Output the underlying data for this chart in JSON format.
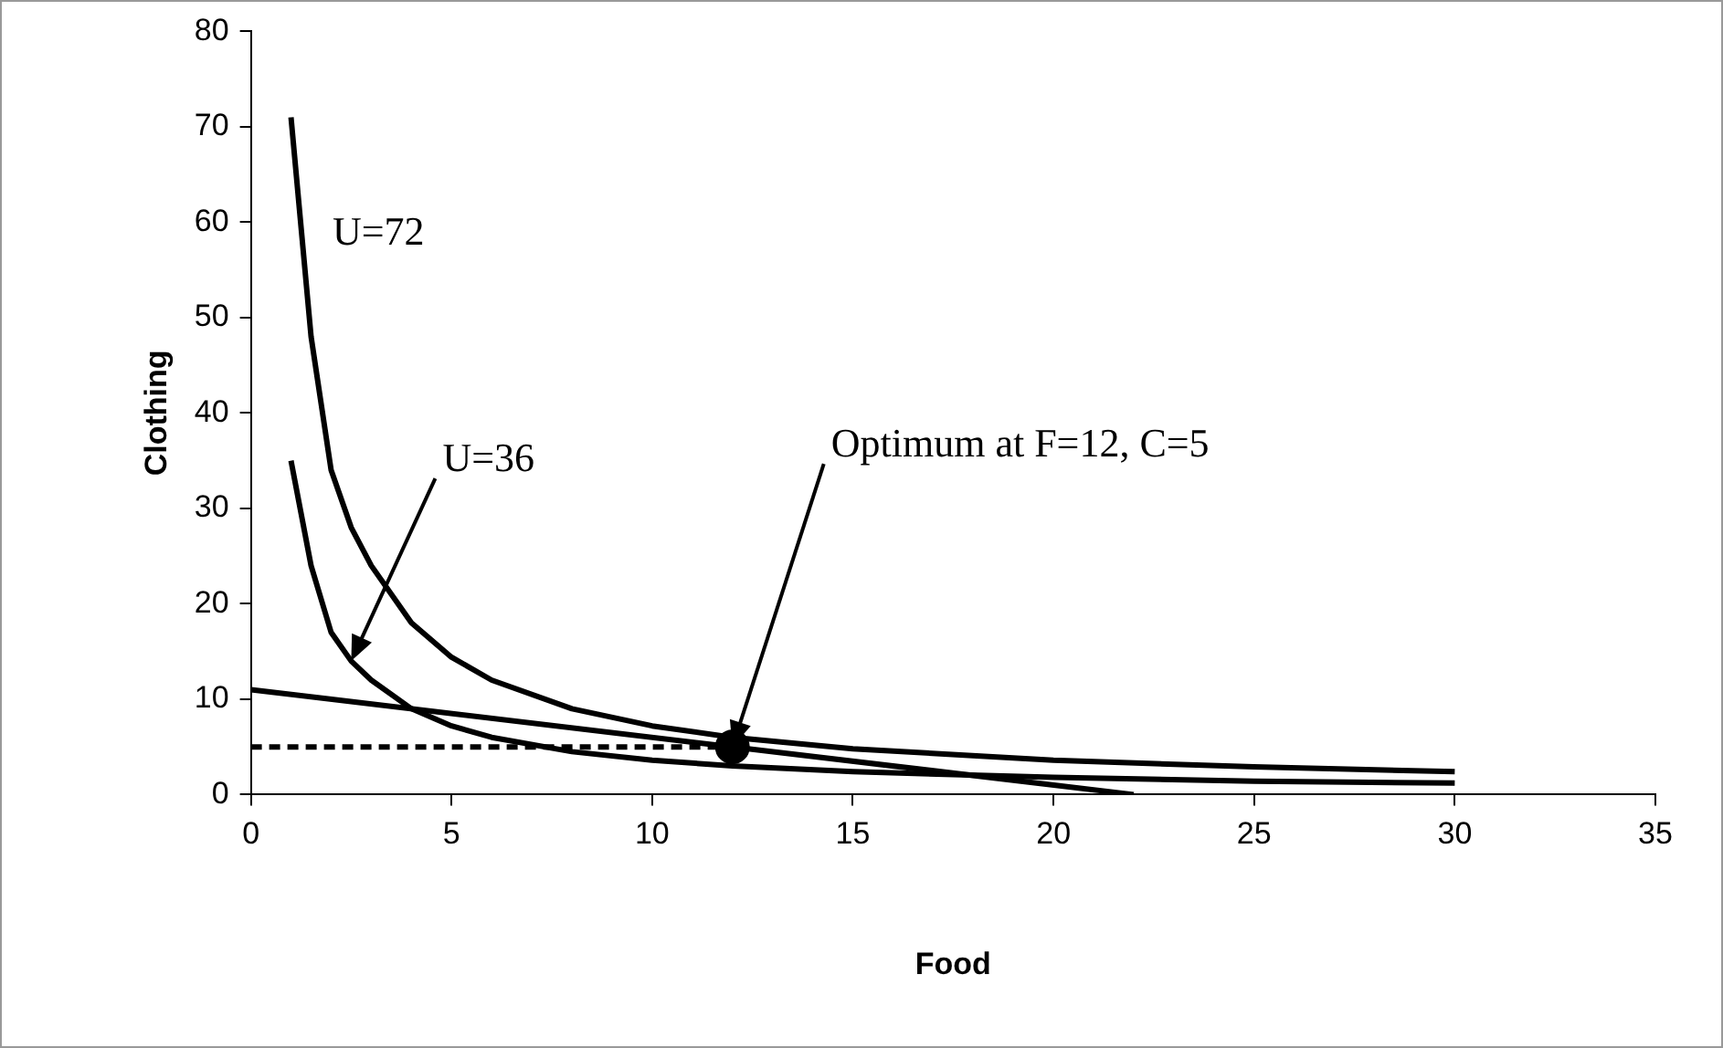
{
  "chart_data": {
    "type": "line",
    "xlabel": "Food",
    "ylabel": "Clothing",
    "xlim": [
      0,
      35
    ],
    "xticks": [
      0,
      5,
      10,
      15,
      20,
      25,
      30,
      35
    ],
    "ylim": [
      0,
      80
    ],
    "yticks": [
      0,
      10,
      20,
      30,
      40,
      50,
      60,
      70,
      80
    ],
    "grid": false,
    "legend": false,
    "marker": "none",
    "series": [
      {
        "color": "#000000",
        "x": [
          1,
          1.5,
          2,
          2.5,
          3,
          4,
          5,
          6,
          8,
          10,
          12,
          15,
          20,
          25,
          30
        ],
        "values": [
          71,
          48,
          34,
          28,
          24,
          18,
          14.4,
          12,
          9,
          7.2,
          6,
          4.8,
          3.6,
          2.9,
          2.4
        ]
      },
      {
        "color": "#000000",
        "x": [
          1,
          1.5,
          2,
          2.5,
          3,
          4,
          5,
          6,
          8,
          10,
          12,
          15,
          20,
          25,
          30
        ],
        "values": [
          35,
          24,
          17,
          14,
          12,
          9,
          7.2,
          6,
          4.5,
          3.6,
          3,
          2.4,
          1.8,
          1.4,
          1.2
        ]
      },
      {
        "color": "#000000",
        "x": [
          0,
          22
        ],
        "values": [
          11,
          0
        ]
      },
      {
        "color": "#000000",
        "x": [
          0,
          12
        ],
        "values": [
          5,
          5
        ],
        "line_style": "dashed"
      },
      {
        "type": "scatter",
        "color": "#000000",
        "x": [
          12
        ],
        "values": [
          5
        ],
        "marker": "circle"
      }
    ],
    "annotations": [
      "U=72",
      {
        "text": "U=36",
        "x": 2.5,
        "y": 14
      },
      {
        "text": "Optimum at F=12, C=5",
        "x": 12,
        "y": 5
      }
    ]
  }
}
